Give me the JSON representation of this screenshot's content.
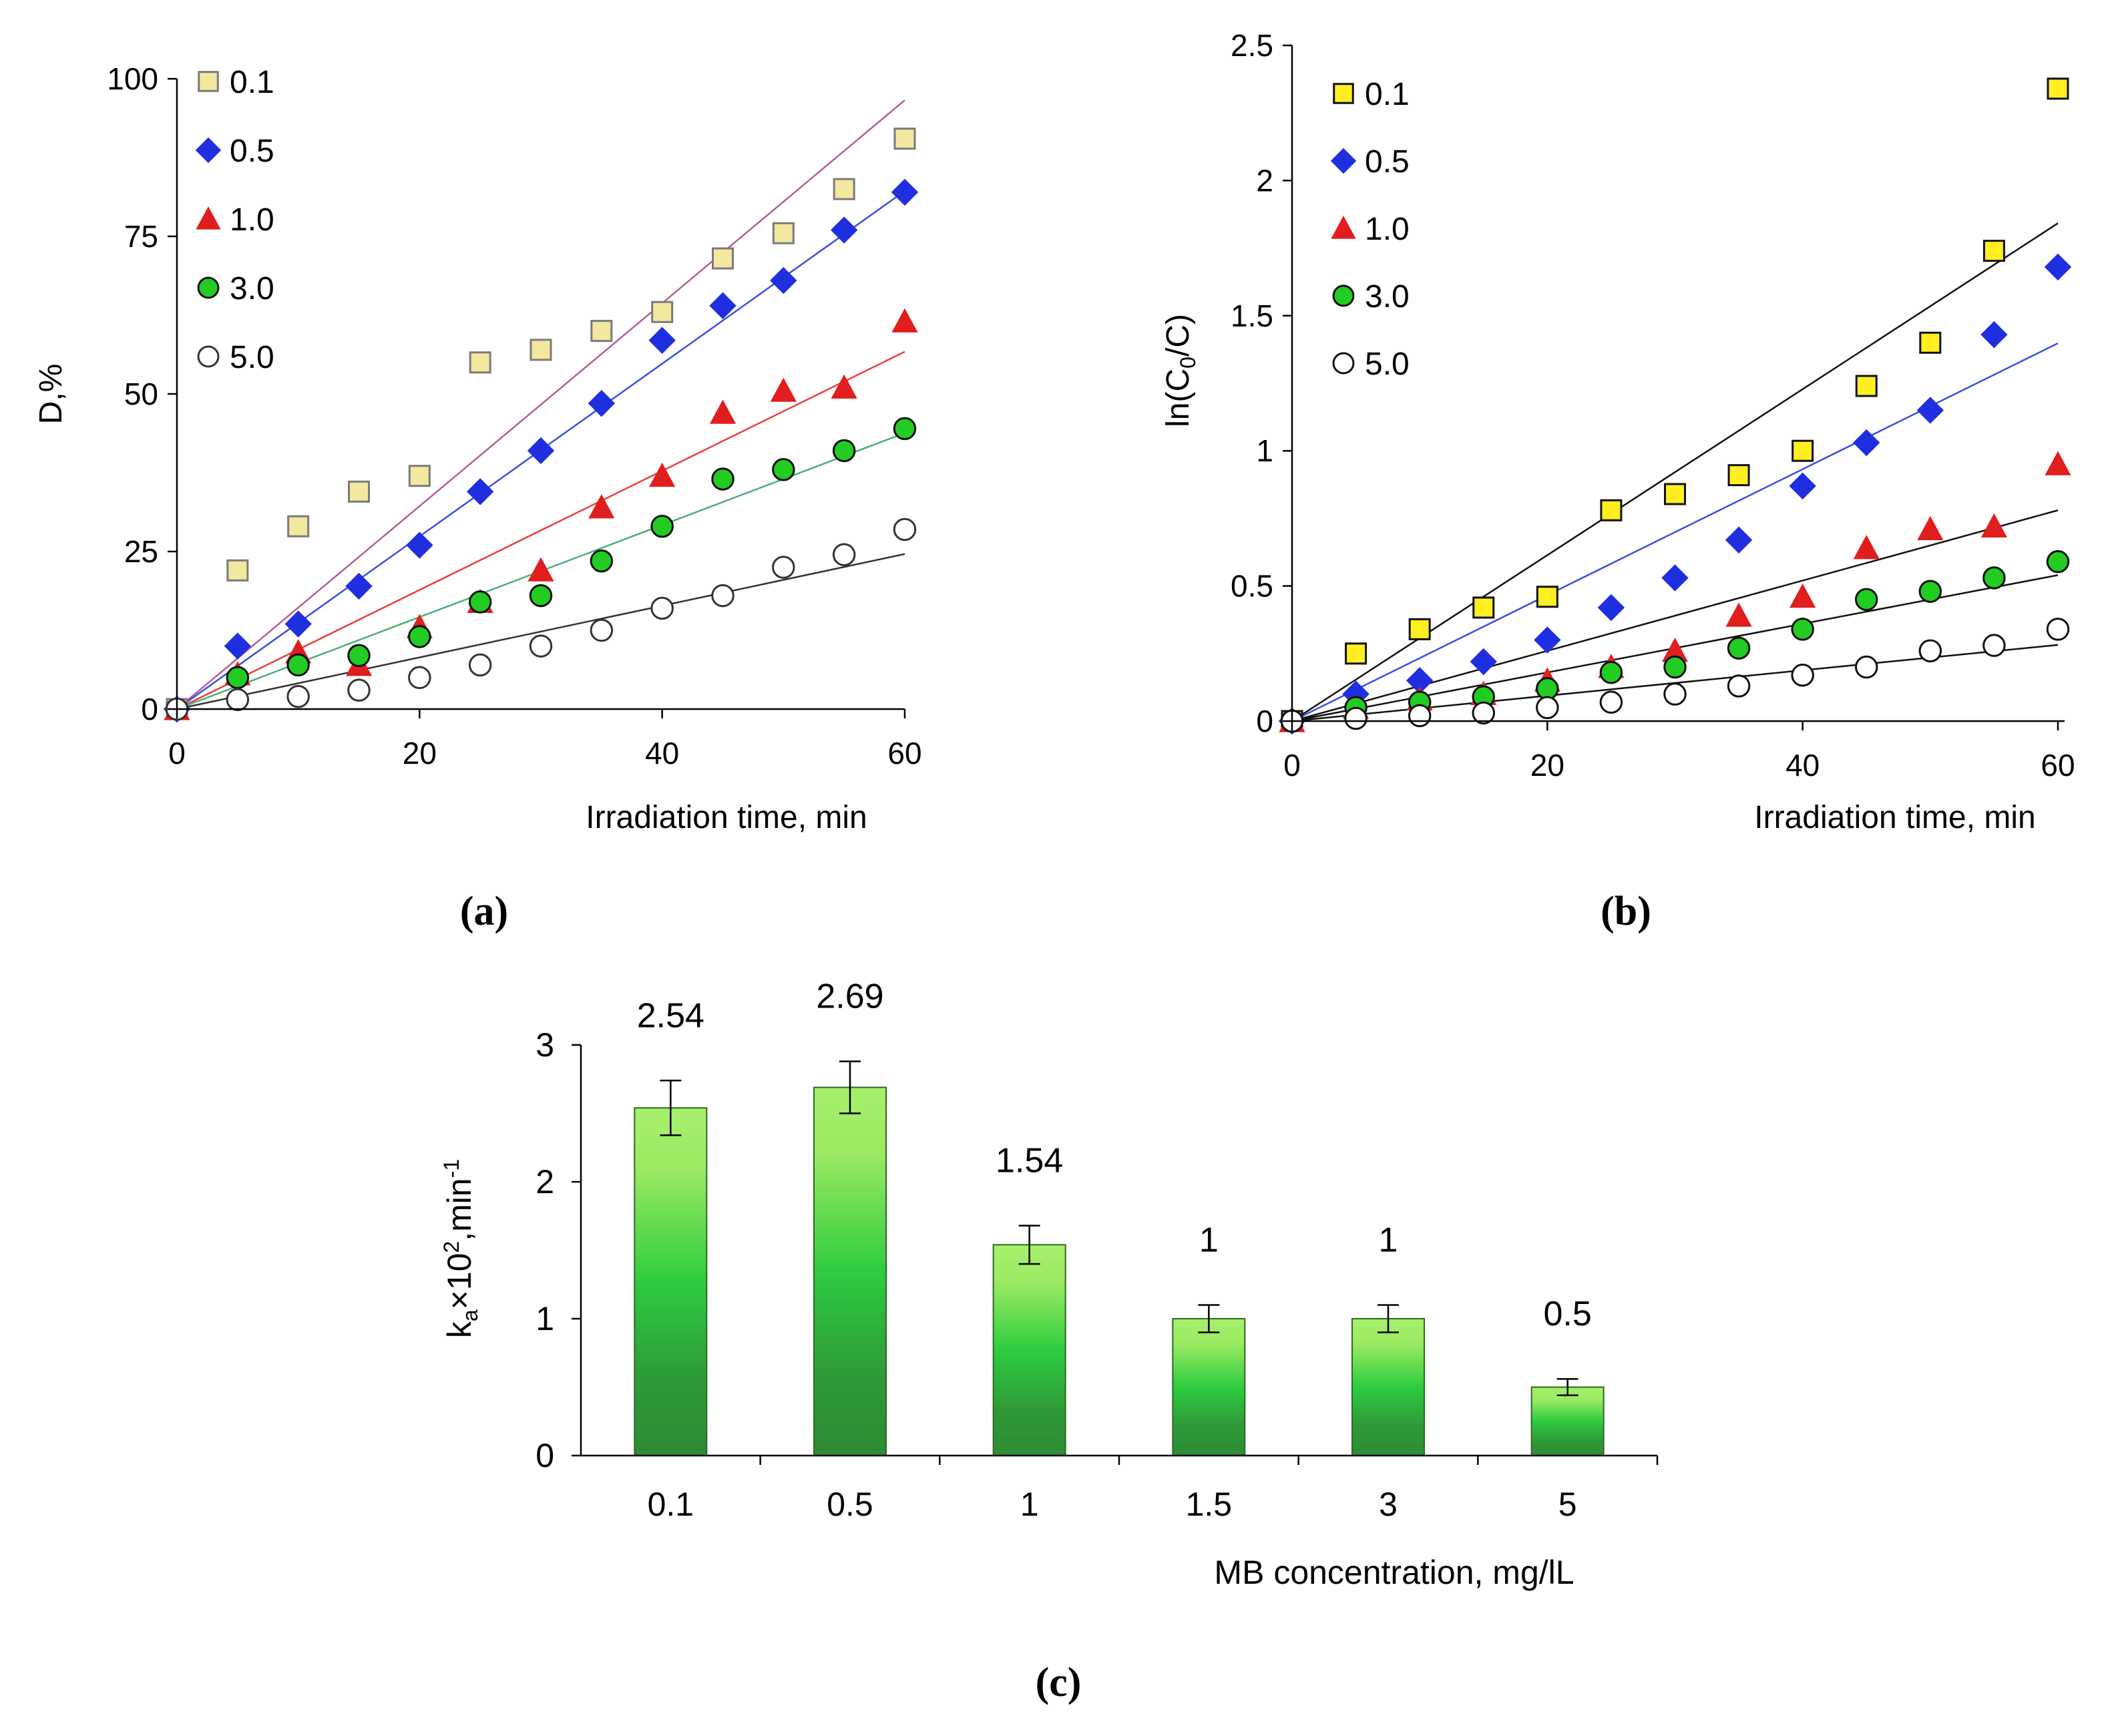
{
  "chart_data": [
    {
      "type": "scatter",
      "panel_label": "(a)",
      "xlabel": "Irradiation time, min",
      "ylabel": "D,%",
      "xlim": [
        0,
        60
      ],
      "ylim": [
        0,
        100
      ],
      "xticks": [
        "0",
        "20",
        "40",
        "60"
      ],
      "yticks": [
        "0",
        "25",
        "50",
        "75",
        "100"
      ],
      "x": [
        0,
        5,
        10,
        15,
        20,
        25,
        30,
        35,
        40,
        45,
        50,
        55,
        60
      ],
      "series": [
        {
          "name": "0.1",
          "marker": "square",
          "fill": "#f3e8a0",
          "stroke": "#7a7a7a",
          "line_color": "#b0609a",
          "fit_slope": 1.61,
          "values": [
            0,
            22,
            29,
            34.5,
            37,
            55,
            57,
            60,
            63,
            71.5,
            75.5,
            82.5,
            90.5
          ]
        },
        {
          "name": "0.5",
          "marker": "diamond",
          "fill": "#1f2fe0",
          "stroke": "#1f2fe0",
          "line_color": "#3a4fe0",
          "fit_slope": 1.37,
          "values": [
            0,
            10,
            13.5,
            19.5,
            26,
            34.5,
            41,
            48.5,
            58.5,
            64,
            68,
            76,
            82
          ]
        },
        {
          "name": "1.0",
          "marker": "triangle",
          "fill": "#e01e1e",
          "stroke": "#e01e1e",
          "line_color": "#e84040",
          "fit_slope": 0.945,
          "values": [
            0,
            5.5,
            9,
            7,
            13,
            17,
            22,
            32,
            37,
            47,
            50.5,
            51,
            61.5
          ]
        },
        {
          "name": "3.0",
          "marker": "circle",
          "fill": "#22cc22",
          "stroke": "#111111",
          "line_color": "#4caf7a",
          "fit_slope": 0.73,
          "values": [
            0,
            5,
            7,
            8.5,
            11.5,
            17,
            18,
            23.5,
            29,
            36.5,
            38,
            41,
            44.5
          ]
        },
        {
          "name": "5.0",
          "marker": "circle",
          "fill": "#ffffff",
          "stroke": "#333333",
          "line_color": "#333333",
          "fit_slope": 0.41,
          "values": [
            0,
            1.5,
            2,
            3,
            5,
            7,
            10,
            12.5,
            16,
            18,
            22.5,
            24.5,
            28.5
          ]
        }
      ]
    },
    {
      "type": "scatter",
      "panel_label": "(b)",
      "xlabel": "Irradiation time, min",
      "ylabel_main": "ln(C",
      "ylabel_sub": "0",
      "ylabel_tail": "/C)",
      "xlim": [
        0,
        60
      ],
      "ylim": [
        0,
        2.5
      ],
      "xticks": [
        "0",
        "20",
        "40",
        "60"
      ],
      "yticks": [
        "0",
        "0.5",
        "1",
        "1.5",
        "2",
        "2.5"
      ],
      "x": [
        0,
        5,
        10,
        15,
        20,
        25,
        30,
        35,
        40,
        45,
        50,
        55,
        60
      ],
      "series": [
        {
          "name": "0.1",
          "marker": "square",
          "fill": "#ffee22",
          "stroke": "#111111",
          "line_color": "#111111",
          "fit_slope": 0.0307,
          "values": [
            0,
            0.25,
            0.34,
            0.42,
            0.46,
            0.78,
            0.84,
            0.91,
            1.0,
            1.24,
            1.4,
            1.74,
            2.34
          ]
        },
        {
          "name": "0.5",
          "marker": "diamond",
          "fill": "#1f2fe0",
          "stroke": "#1f2fe0",
          "line_color": "#3a4fe0",
          "fit_slope": 0.0233,
          "values": [
            0,
            0.1,
            0.15,
            0.22,
            0.3,
            0.42,
            0.53,
            0.67,
            0.87,
            1.03,
            1.15,
            1.43,
            1.68
          ]
        },
        {
          "name": "1.0",
          "marker": "triangle",
          "fill": "#e01e1e",
          "stroke": "#e01e1e",
          "line_color": "#111111",
          "fit_slope": 0.013,
          "values": [
            0,
            0.05,
            0.08,
            0.1,
            0.15,
            0.2,
            0.26,
            0.39,
            0.46,
            0.64,
            0.71,
            0.72,
            0.95
          ]
        },
        {
          "name": "3.0",
          "marker": "circle",
          "fill": "#22cc22",
          "stroke": "#111111",
          "line_color": "#111111",
          "fit_slope": 0.009,
          "values": [
            0,
            0.05,
            0.07,
            0.09,
            0.12,
            0.18,
            0.2,
            0.27,
            0.34,
            0.45,
            0.48,
            0.53,
            0.59
          ]
        },
        {
          "name": "5.0",
          "marker": "circle",
          "fill": "#ffffff",
          "stroke": "#111111",
          "line_color": "#111111",
          "fit_slope": 0.0047,
          "values": [
            0,
            0.01,
            0.02,
            0.03,
            0.05,
            0.07,
            0.1,
            0.13,
            0.17,
            0.2,
            0.26,
            0.28,
            0.34
          ]
        }
      ]
    },
    {
      "type": "bar",
      "panel_label": "(c)",
      "xlabel": "MB concentration, mg/lL",
      "ylabel_main": "k",
      "ylabel_sub": "a",
      "ylabel_mid": "×10",
      "ylabel_sup": "2",
      "ylabel_tail": ",min",
      "ylabel_sup2": "-1",
      "ylim": [
        0,
        3
      ],
      "yticks": [
        "0",
        "1",
        "2",
        "3"
      ],
      "categories": [
        "0.1",
        "0.5",
        "1",
        "1.5",
        "3",
        "5"
      ],
      "values": [
        2.54,
        2.69,
        1.54,
        1.0,
        1.0,
        0.5
      ],
      "data_labels": [
        "2.54",
        "2.69",
        "1.54",
        "1",
        "1",
        "0.5"
      ],
      "errors": [
        0.2,
        0.19,
        0.14,
        0.1,
        0.1,
        0.06
      ],
      "colors": {
        "bar_top": "#a8f06c",
        "bar_mid": "#2ecc40",
        "bar_bottom": "#2e8b34",
        "bar_stroke": "#2a6a20"
      }
    }
  ]
}
